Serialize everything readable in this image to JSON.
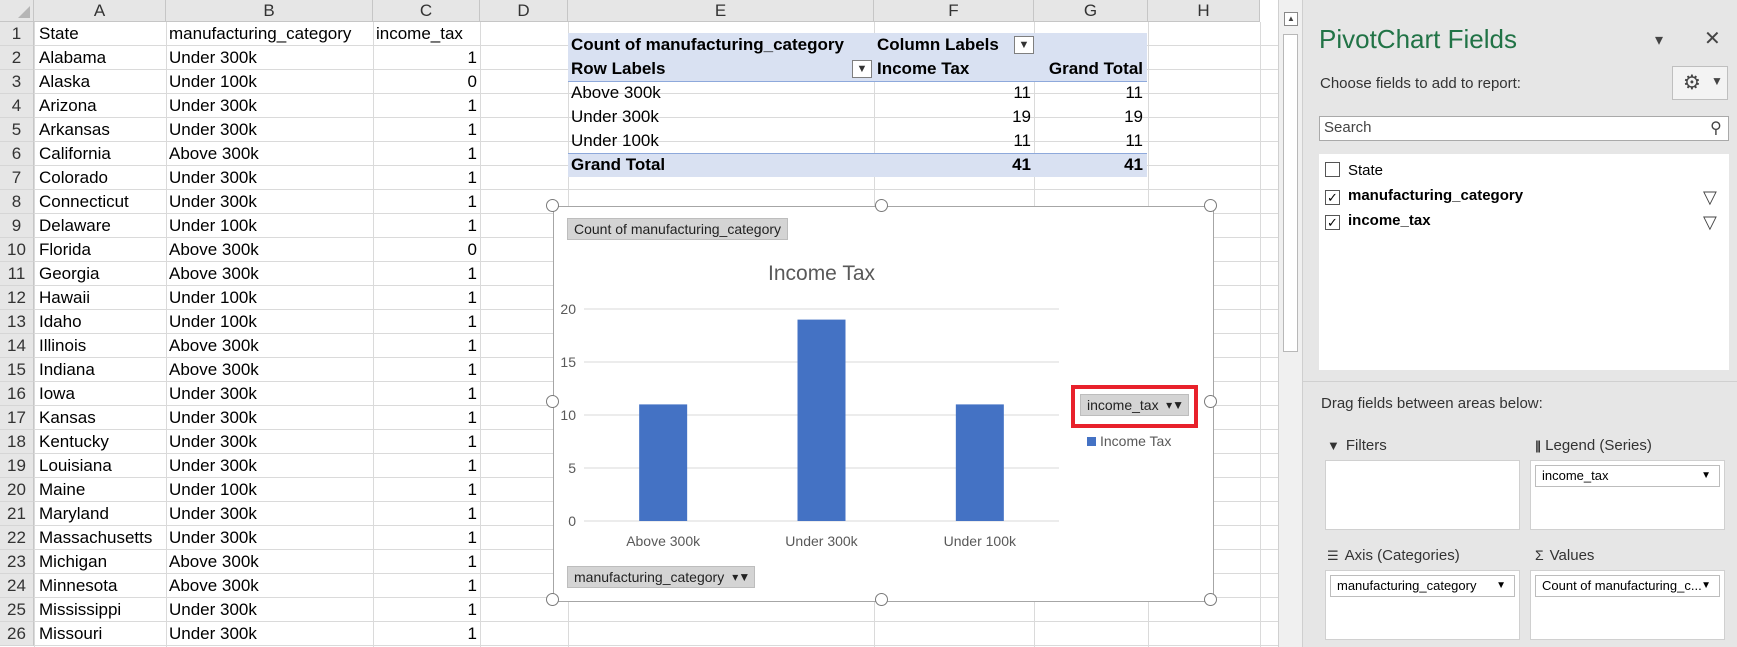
{
  "columns": [
    "A",
    "B",
    "C",
    "D",
    "E",
    "F",
    "G",
    "H"
  ],
  "rows": [
    {
      "n": "1",
      "state": "State",
      "cat": "manufacturing_category",
      "tax": "income_tax"
    },
    {
      "n": "2",
      "state": "Alabama",
      "cat": "Under 300k",
      "tax": "1"
    },
    {
      "n": "3",
      "state": "Alaska",
      "cat": "Under 100k",
      "tax": "0"
    },
    {
      "n": "4",
      "state": "Arizona",
      "cat": "Under 300k",
      "tax": "1"
    },
    {
      "n": "5",
      "state": "Arkansas",
      "cat": "Under 300k",
      "tax": "1"
    },
    {
      "n": "6",
      "state": "California",
      "cat": "Above 300k",
      "tax": "1"
    },
    {
      "n": "7",
      "state": "Colorado",
      "cat": "Under 300k",
      "tax": "1"
    },
    {
      "n": "8",
      "state": "Connecticut",
      "cat": "Under 300k",
      "tax": "1"
    },
    {
      "n": "9",
      "state": "Delaware",
      "cat": "Under 100k",
      "tax": "1"
    },
    {
      "n": "10",
      "state": "Florida",
      "cat": "Above 300k",
      "tax": "0"
    },
    {
      "n": "11",
      "state": "Georgia",
      "cat": "Above 300k",
      "tax": "1"
    },
    {
      "n": "12",
      "state": "Hawaii",
      "cat": "Under 100k",
      "tax": "1"
    },
    {
      "n": "13",
      "state": "Idaho",
      "cat": "Under 100k",
      "tax": "1"
    },
    {
      "n": "14",
      "state": "Illinois",
      "cat": "Above 300k",
      "tax": "1"
    },
    {
      "n": "15",
      "state": "Indiana",
      "cat": "Above 300k",
      "tax": "1"
    },
    {
      "n": "16",
      "state": "Iowa",
      "cat": "Under 300k",
      "tax": "1"
    },
    {
      "n": "17",
      "state": "Kansas",
      "cat": "Under 300k",
      "tax": "1"
    },
    {
      "n": "18",
      "state": "Kentucky",
      "cat": "Under 300k",
      "tax": "1"
    },
    {
      "n": "19",
      "state": "Louisiana",
      "cat": "Under 300k",
      "tax": "1"
    },
    {
      "n": "20",
      "state": "Maine",
      "cat": "Under 100k",
      "tax": "1"
    },
    {
      "n": "21",
      "state": "Maryland",
      "cat": "Under 300k",
      "tax": "1"
    },
    {
      "n": "22",
      "state": "Massachusetts",
      "cat": "Under 300k",
      "tax": "1"
    },
    {
      "n": "23",
      "state": "Michigan",
      "cat": "Above 300k",
      "tax": "1"
    },
    {
      "n": "24",
      "state": "Minnesota",
      "cat": "Above 300k",
      "tax": "1"
    },
    {
      "n": "25",
      "state": "Mississippi",
      "cat": "Under 300k",
      "tax": "1"
    },
    {
      "n": "26",
      "state": "Missouri",
      "cat": "Under 300k",
      "tax": "1"
    }
  ],
  "pivot": {
    "header_count": "Count of manufacturing_category",
    "header_col_labels": "Column Labels",
    "row_labels": "Row Labels",
    "col_income": "Income Tax",
    "col_grand": "Grand Total",
    "body": [
      {
        "label": "Above 300k",
        "income": "11",
        "grand": "11"
      },
      {
        "label": "Under 300k",
        "income": "19",
        "grand": "19"
      },
      {
        "label": "Under 100k",
        "income": "11",
        "grand": "11"
      }
    ],
    "total_label": "Grand Total",
    "total_income": "41",
    "total_grand": "41"
  },
  "chart_data": {
    "type": "bar",
    "title": "Income Tax",
    "categories": [
      "Above 300k",
      "Under 300k",
      "Under 100k"
    ],
    "series": [
      {
        "name": "Income Tax",
        "values": [
          11,
          19,
          11
        ],
        "color": "#4472c4"
      }
    ],
    "ylim": [
      0,
      20
    ],
    "yticks": [
      "0",
      "5",
      "10",
      "15",
      "20"
    ],
    "grid": true,
    "legend": "right",
    "value_field_button": "Count of manufacturing_category",
    "axis_field_button": "manufacturing_category",
    "legend_field_button": "income_tax",
    "highlight_color": "#e8212b"
  },
  "pane": {
    "title": "PivotChart Fields",
    "subtitle": "Choose fields to add to report:",
    "search_placeholder": "Search",
    "fields": [
      {
        "name": "State",
        "checked": false
      },
      {
        "name": "manufacturing_category",
        "checked": true
      },
      {
        "name": "income_tax",
        "checked": true
      }
    ],
    "drag_label": "Drag fields between areas below:",
    "filters_title": "Filters",
    "legend_title": "Legend (Series)",
    "axis_title": "Axis (Categories)",
    "values_title": "Values",
    "legend_item": "income_tax",
    "axis_item": "manufacturing_category",
    "values_item": "Count of manufacturing_c..."
  }
}
